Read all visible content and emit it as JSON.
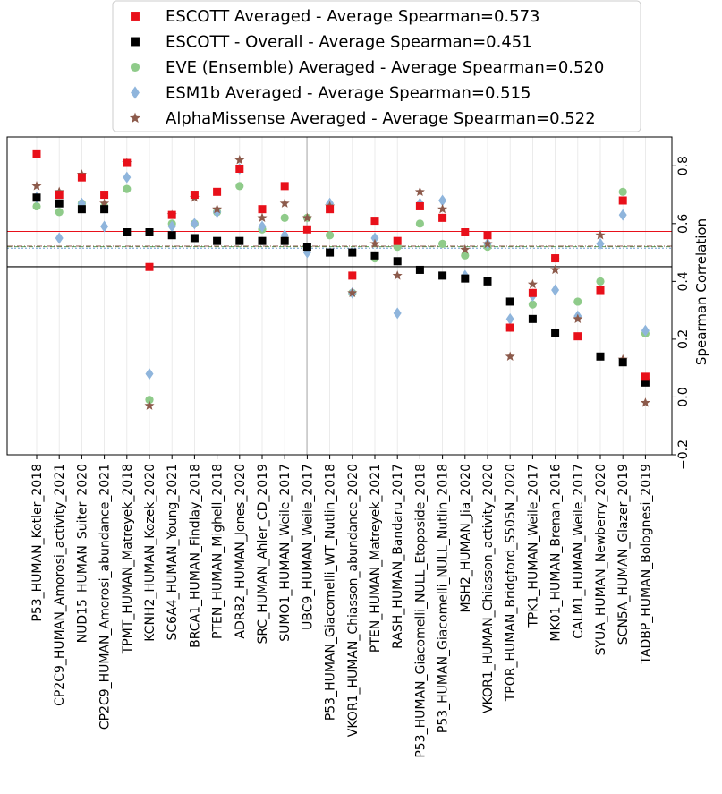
{
  "chart_data": {
    "type": "scatter",
    "title": "",
    "xlabel": "",
    "ylabel": "Spearman Correlation",
    "ylim": [
      -0.2,
      0.9
    ],
    "yticks": [
      "−0.2",
      "0.0",
      "0.2",
      "0.4",
      "0.6",
      "0.8"
    ],
    "ytick_values": [
      -0.2,
      0.0,
      0.2,
      0.4,
      0.6,
      0.8
    ],
    "grid": "vertical",
    "legend_position": "top-center",
    "categories": [
      "P53_HUMAN_Kotler_2018",
      "CP2C9_HUMAN_Amorosi_activity_2021",
      "NUD15_HUMAN_Suiter_2020",
      "CP2C9_HUMAN_Amorosi_abundance_2021",
      "TPMT_HUMAN_Matreyek_2018",
      "KCNH2_HUMAN_Kozek_2020",
      "SC6A4_HUMAN_Young_2021",
      "BRCA1_HUMAN_Findlay_2018",
      "PTEN_HUMAN_Mighell_2018",
      "ADRB2_HUMAN_Jones_2020",
      "SRC_HUMAN_Ahler_CD_2019",
      "SUMO1_HUMAN_Weile_2017",
      "UBC9_HUMAN_Weile_2017",
      "P53_HUMAN_Giacomelli_WT_Nutlin_2018",
      "VKOR1_HUMAN_Chiasson_abundance_2020",
      "PTEN_HUMAN_Matreyek_2021",
      "RASH_HUMAN_Bandaru_2017",
      "P53_HUMAN_Giacomelli_NULL_Etoposide_2018",
      "P53_HUMAN_Giacomelli_NULL_Nutlin_2018",
      "MSH2_HUMAN_Jia_2020",
      "VKOR1_HUMAN_Chiasson_activity_2020",
      "TPOR_HUMAN_Bridgford_S505N_2020",
      "TPK1_HUMAN_Weile_2017",
      "MK01_HUMAN_Brenan_2016",
      "CALM1_HUMAN_Weile_2017",
      "SYUA_HUMAN_Newberry_2020",
      "SCN5A_HUMAN_Glazer_2019",
      "TADBP_HUMAN_Bolognesi_2019"
    ],
    "series": [
      {
        "name": "ESCOTT Averaged - Average Spearman=0.573",
        "color": "#e8101a",
        "marker": "square",
        "mean": 0.573,
        "values": [
          0.84,
          0.7,
          0.76,
          0.7,
          0.81,
          0.45,
          0.63,
          0.7,
          0.71,
          0.79,
          0.65,
          0.73,
          0.58,
          0.65,
          0.42,
          0.61,
          0.54,
          0.66,
          0.62,
          0.57,
          0.56,
          0.24,
          0.36,
          0.48,
          0.21,
          0.37,
          0.68,
          0.07
        ]
      },
      {
        "name": "ESCOTT - Overall - Average Spearman=0.451",
        "color": "#000000",
        "marker": "square",
        "mean": 0.451,
        "values": [
          0.69,
          0.67,
          0.65,
          0.65,
          0.57,
          0.57,
          0.56,
          0.55,
          0.54,
          0.54,
          0.54,
          0.54,
          0.52,
          0.5,
          0.5,
          0.49,
          0.47,
          0.44,
          0.42,
          0.41,
          0.4,
          0.33,
          0.27,
          0.22,
          null,
          0.14,
          0.12,
          0.05
        ]
      },
      {
        "name": "EVE (Ensemble) Averaged - Average Spearman=0.520",
        "color": "#8fcb8a",
        "marker": "circle",
        "mean": 0.52,
        "values": [
          0.66,
          0.64,
          0.67,
          0.66,
          0.72,
          -0.01,
          0.6,
          0.6,
          0.64,
          0.73,
          0.58,
          0.62,
          0.62,
          0.56,
          0.36,
          0.48,
          0.52,
          0.6,
          0.53,
          0.49,
          0.52,
          0.24,
          0.32,
          0.48,
          0.33,
          0.4,
          0.71,
          0.22
        ]
      },
      {
        "name": "ESM1b Averaged - Average Spearman=0.515",
        "color": "#8fb5dc",
        "marker": "diamond",
        "mean": 0.515,
        "values": [
          0.69,
          0.55,
          0.67,
          0.59,
          0.76,
          0.08,
          0.59,
          0.6,
          0.64,
          0.79,
          0.59,
          0.56,
          0.5,
          0.67,
          0.36,
          0.55,
          0.29,
          0.67,
          0.68,
          0.42,
          0.53,
          0.27,
          0.35,
          0.37,
          0.28,
          0.53,
          0.63,
          0.23
        ]
      },
      {
        "name": "AlphaMissense Averaged - Average Spearman=0.522",
        "color": "#8c5a4b",
        "marker": "star",
        "mean": 0.522,
        "values": [
          0.73,
          0.71,
          0.77,
          0.67,
          0.81,
          -0.03,
          0.63,
          0.69,
          0.65,
          0.82,
          0.62,
          0.67,
          0.62,
          0.66,
          0.36,
          0.53,
          0.42,
          0.71,
          0.65,
          0.51,
          0.53,
          0.14,
          0.39,
          0.44,
          0.27,
          0.56,
          0.13,
          -0.02
        ]
      }
    ]
  }
}
